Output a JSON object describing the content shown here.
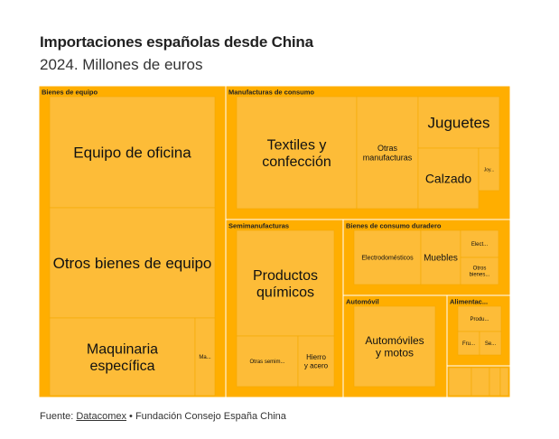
{
  "header": {
    "title": "Importaciones españolas desde China",
    "subtitle": "2024. Millones de euros"
  },
  "footer": {
    "prefix": "Fuente: ",
    "link": "Datacomex",
    "suffix": " • Fundación Consejo España China"
  },
  "colors": {
    "group_fill": "#FFAE00",
    "leaf_fill": "#FDBC38",
    "separator": "#ffffff"
  },
  "chart_data": {
    "type": "treemap",
    "title": "Importaciones españolas desde China",
    "subtitle": "2024. Millones de euros",
    "groups": [
      {
        "name": "Bienes de equipo",
        "items": [
          {
            "name": "Equipo de oficina",
            "value": 5200
          },
          {
            "name": "Otros bienes de equipo",
            "value": 5200
          },
          {
            "name": "Maquinaria específica",
            "value": 3500
          },
          {
            "name": "Ma...",
            "value": 500
          }
        ]
      },
      {
        "name": "Manufacturas de consumo",
        "items": [
          {
            "name": "Textiles y confección",
            "value": 3600
          },
          {
            "name": "Otras manufacturas",
            "value": 1900
          },
          {
            "name": "Juguetes",
            "value": 1300
          },
          {
            "name": "Calzado",
            "value": 900
          },
          {
            "name": "Joy...",
            "value": 200
          }
        ]
      },
      {
        "name": "Semimanufacturas",
        "items": [
          {
            "name": "Productos químicos",
            "value": 2800
          },
          {
            "name": "Otras semim...",
            "value": 800
          },
          {
            "name": "Hierro y acero",
            "value": 400
          }
        ]
      },
      {
        "name": "Bienes de consumo duradero",
        "items": [
          {
            "name": "Electrodomésticos",
            "value": 1300
          },
          {
            "name": "Muebles",
            "value": 500
          },
          {
            "name": "Elect...",
            "value": 200
          },
          {
            "name": "Otros bienes...",
            "value": 200
          }
        ]
      },
      {
        "name": "Automóvil",
        "items": [
          {
            "name": "Automóviles y motos",
            "value": 1300
          }
        ]
      },
      {
        "name": "Alimentac...",
        "items": [
          {
            "name": "Produ...",
            "value": 250
          },
          {
            "name": "Fru...",
            "value": 130
          },
          {
            "name": "Se...",
            "value": 70
          }
        ]
      },
      {
        "name": "",
        "items": [
          {
            "name": "",
            "value": 60
          },
          {
            "name": "",
            "value": 45
          },
          {
            "name": "",
            "value": 35
          },
          {
            "name": "",
            "value": 20
          }
        ]
      }
    ]
  }
}
